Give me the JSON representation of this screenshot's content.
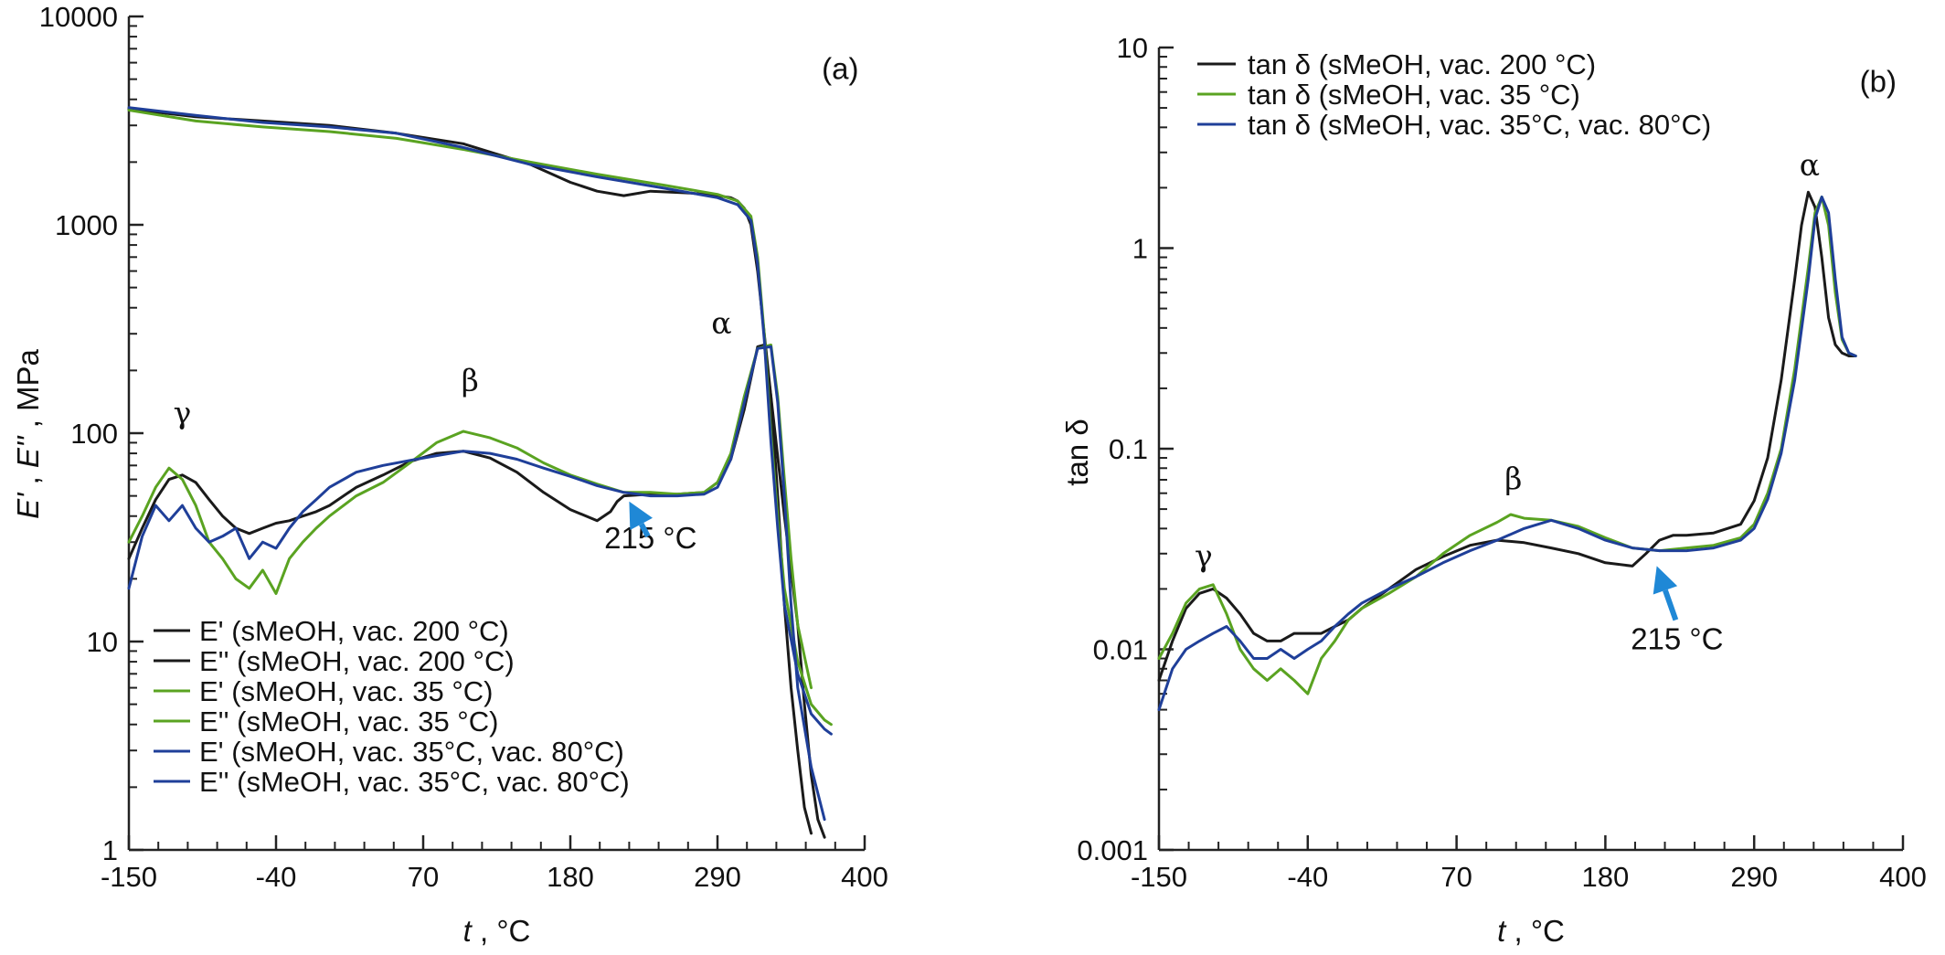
{
  "colors": {
    "black": "#1a1a1a",
    "green": "#5aa321",
    "blue": "#1f3f99",
    "arrow": "#1f88d6"
  },
  "chart_data": [
    {
      "type": "line",
      "panel": "(a)",
      "xlabel": "t , °C",
      "ylabel": "E' , E'' , MPa",
      "xlim": [
        -150,
        400
      ],
      "ylim": [
        1,
        10000
      ],
      "yscale": "log",
      "xticks": [
        "-150",
        "-40",
        "70",
        "180",
        "290",
        "400"
      ],
      "yticks": [
        "1",
        "10",
        "100",
        "1000",
        "10000"
      ],
      "series": [
        {
          "name": "E' (sMeOH, vac. 200 °C)",
          "color": "black",
          "x": [
            -150,
            -100,
            -50,
            0,
            50,
            100,
            150,
            180,
            200,
            220,
            240,
            270,
            290,
            300,
            305,
            310,
            315,
            320,
            330,
            340,
            350,
            355,
            360,
            365,
            370
          ],
          "y": [
            3600,
            3300,
            3150,
            3000,
            2750,
            2450,
            1950,
            1600,
            1450,
            1380,
            1450,
            1420,
            1380,
            1350,
            1300,
            1200,
            1000,
            600,
            150,
            40,
            12,
            5,
            2.3,
            1.4,
            1.15
          ]
        },
        {
          "name": "E'' (sMeOH, vac. 200 °C)",
          "color": "black",
          "x": [
            -150,
            -140,
            -130,
            -120,
            -110,
            -100,
            -90,
            -80,
            -70,
            -60,
            -50,
            -40,
            -30,
            -20,
            -10,
            0,
            20,
            40,
            60,
            80,
            100,
            120,
            140,
            160,
            180,
            200,
            210,
            215,
            220,
            240,
            260,
            280,
            290,
            300,
            310,
            320,
            325,
            330,
            335,
            340,
            345,
            350,
            355,
            360
          ],
          "y": [
            25,
            35,
            48,
            60,
            63,
            58,
            48,
            40,
            35,
            33,
            35,
            37,
            38,
            40,
            42,
            45,
            55,
            63,
            73,
            80,
            82,
            76,
            65,
            52,
            43,
            38,
            42,
            47,
            50,
            51,
            51,
            52,
            58,
            75,
            130,
            260,
            265,
            150,
            50,
            15,
            6,
            3,
            1.6,
            1.2
          ]
        },
        {
          "name": "E' (sMeOH, vac. 35 °C)",
          "color": "green",
          "x": [
            -150,
            -100,
            -50,
            0,
            50,
            100,
            150,
            200,
            250,
            290,
            305,
            315,
            320,
            325,
            330,
            335,
            340,
            350,
            360,
            370,
            375
          ],
          "y": [
            3550,
            3150,
            2950,
            2800,
            2600,
            2300,
            2000,
            1750,
            1550,
            1400,
            1300,
            1100,
            700,
            300,
            100,
            40,
            18,
            8,
            5,
            4.2,
            4
          ]
        },
        {
          "name": "E'' (sMeOH, vac. 35 °C)",
          "color": "green",
          "x": [
            -150,
            -140,
            -130,
            -120,
            -110,
            -100,
            -90,
            -80,
            -70,
            -60,
            -50,
            -40,
            -30,
            -20,
            -10,
            0,
            20,
            40,
            60,
            80,
            100,
            120,
            140,
            160,
            180,
            200,
            220,
            240,
            260,
            280,
            290,
            300,
            310,
            320,
            330,
            335,
            340,
            345,
            350,
            360
          ],
          "y": [
            30,
            40,
            55,
            68,
            60,
            45,
            30,
            25,
            20,
            18,
            22,
            17,
            25,
            30,
            35,
            40,
            50,
            58,
            72,
            90,
            102,
            95,
            85,
            72,
            63,
            57,
            52,
            52,
            51,
            52,
            58,
            80,
            150,
            255,
            265,
            150,
            60,
            25,
            12,
            6
          ]
        },
        {
          "name": "E' (sMeOH, vac. 35°C, vac. 80°C)",
          "color": "blue",
          "x": [
            -150,
            -100,
            -50,
            0,
            50,
            100,
            150,
            200,
            250,
            290,
            305,
            315,
            320,
            325,
            330,
            335,
            340,
            350,
            360,
            370,
            375
          ],
          "y": [
            3650,
            3350,
            3100,
            2950,
            2750,
            2350,
            1950,
            1700,
            1500,
            1350,
            1250,
            1050,
            650,
            280,
            90,
            35,
            15,
            7,
            4.5,
            3.8,
            3.6
          ]
        },
        {
          "name": "E'' (sMeOH, vac. 35°C, vac. 80°C)",
          "color": "blue",
          "x": [
            -150,
            -140,
            -130,
            -120,
            -110,
            -100,
            -90,
            -80,
            -70,
            -60,
            -50,
            -40,
            -30,
            -20,
            -10,
            0,
            20,
            40,
            60,
            80,
            100,
            120,
            140,
            160,
            180,
            200,
            220,
            240,
            260,
            280,
            290,
            300,
            310,
            320,
            330,
            335,
            340,
            345,
            350,
            360,
            370
          ],
          "y": [
            18,
            32,
            45,
            38,
            45,
            35,
            30,
            32,
            35,
            25,
            30,
            28,
            35,
            42,
            48,
            55,
            65,
            70,
            74,
            78,
            82,
            80,
            75,
            68,
            62,
            56,
            52,
            50,
            50,
            51,
            55,
            75,
            140,
            255,
            260,
            140,
            50,
            15,
            6,
            2.5,
            1.4
          ]
        }
      ],
      "annotations": [
        {
          "text": "(a)",
          "x": 368,
          "y": 5000
        },
        {
          "text": "γ",
          "x": -110,
          "y": 112
        },
        {
          "text": "β",
          "x": 105,
          "y": 160
        },
        {
          "text": "α",
          "x": 293,
          "y": 300
        },
        {
          "text": "215 °C",
          "x": 240,
          "y": 28
        }
      ],
      "arrow": {
        "from": [
          238,
          32
        ],
        "to": [
          224,
          47
        ],
        "color": "arrow"
      }
    },
    {
      "type": "line",
      "panel": "(b)",
      "xlabel": "t , °C",
      "ylabel": "tan δ",
      "xlim": [
        -150,
        400
      ],
      "ylim": [
        0.001,
        10
      ],
      "yscale": "log",
      "xticks": [
        "-150",
        "-40",
        "70",
        "180",
        "290",
        "400"
      ],
      "yticks": [
        "0.001",
        "0.01",
        "0.1",
        "1",
        "10"
      ],
      "series": [
        {
          "name": "tan δ (sMeOH, vac. 200 °C)",
          "color": "black",
          "x": [
            -150,
            -140,
            -130,
            -120,
            -110,
            -100,
            -90,
            -80,
            -70,
            -60,
            -50,
            -40,
            -30,
            -20,
            -10,
            0,
            20,
            40,
            60,
            80,
            100,
            120,
            140,
            160,
            180,
            200,
            210,
            220,
            230,
            240,
            260,
            280,
            290,
            300,
            310,
            320,
            325,
            330,
            335,
            340,
            345,
            350,
            355,
            360,
            365
          ],
          "y": [
            0.007,
            0.011,
            0.016,
            0.019,
            0.02,
            0.018,
            0.015,
            0.012,
            0.011,
            0.011,
            0.012,
            0.012,
            0.012,
            0.013,
            0.014,
            0.016,
            0.02,
            0.025,
            0.029,
            0.033,
            0.035,
            0.034,
            0.032,
            0.03,
            0.027,
            0.026,
            0.03,
            0.035,
            0.037,
            0.037,
            0.038,
            0.042,
            0.055,
            0.09,
            0.22,
            0.7,
            1.3,
            1.9,
            1.6,
            0.9,
            0.45,
            0.33,
            0.3,
            0.29,
            0.29
          ]
        },
        {
          "name": "tan δ (sMeOH, vac. 35 °C)",
          "color": "green",
          "x": [
            -150,
            -140,
            -130,
            -120,
            -110,
            -100,
            -90,
            -80,
            -70,
            -60,
            -50,
            -40,
            -30,
            -20,
            -10,
            0,
            20,
            40,
            60,
            80,
            100,
            110,
            120,
            140,
            160,
            180,
            200,
            220,
            240,
            260,
            280,
            290,
            300,
            310,
            320,
            330,
            335,
            340,
            345,
            350,
            355,
            360,
            365
          ],
          "y": [
            0.009,
            0.012,
            0.017,
            0.02,
            0.021,
            0.015,
            0.01,
            0.008,
            0.007,
            0.008,
            0.007,
            0.006,
            0.009,
            0.011,
            0.014,
            0.016,
            0.019,
            0.023,
            0.03,
            0.037,
            0.043,
            0.047,
            0.045,
            0.044,
            0.041,
            0.036,
            0.032,
            0.031,
            0.032,
            0.033,
            0.036,
            0.042,
            0.06,
            0.1,
            0.25,
            0.8,
            1.5,
            1.8,
            1.3,
            0.6,
            0.35,
            0.3,
            0.29
          ]
        },
        {
          "name": "tan δ (sMeOH, vac. 35°C, vac. 80°C)",
          "color": "blue",
          "x": [
            -150,
            -140,
            -130,
            -120,
            -110,
            -100,
            -90,
            -80,
            -70,
            -60,
            -50,
            -40,
            -30,
            -20,
            -10,
            0,
            20,
            40,
            60,
            80,
            100,
            120,
            140,
            160,
            180,
            200,
            220,
            240,
            260,
            280,
            290,
            300,
            310,
            320,
            330,
            335,
            340,
            345,
            350,
            355,
            360,
            365
          ],
          "y": [
            0.005,
            0.008,
            0.01,
            0.011,
            0.012,
            0.013,
            0.011,
            0.009,
            0.009,
            0.01,
            0.009,
            0.01,
            0.011,
            0.013,
            0.015,
            0.017,
            0.02,
            0.023,
            0.027,
            0.031,
            0.035,
            0.04,
            0.044,
            0.04,
            0.035,
            0.032,
            0.031,
            0.031,
            0.032,
            0.035,
            0.04,
            0.056,
            0.095,
            0.22,
            0.7,
            1.4,
            1.8,
            1.5,
            0.7,
            0.36,
            0.3,
            0.29
          ]
        }
      ],
      "annotations": [
        {
          "text": "(b)",
          "x": 368,
          "y": 6
        },
        {
          "text": "γ",
          "x": -117,
          "y": 0.026
        },
        {
          "text": "β",
          "x": 112,
          "y": 0.063
        },
        {
          "text": "α",
          "x": 331,
          "y": 2.3
        },
        {
          "text": "215 °C",
          "x": 233,
          "y": 0.01
        }
      ],
      "arrow": {
        "from": [
          232,
          0.014
        ],
        "to": [
          218,
          0.026
        ],
        "color": "arrow"
      }
    }
  ]
}
